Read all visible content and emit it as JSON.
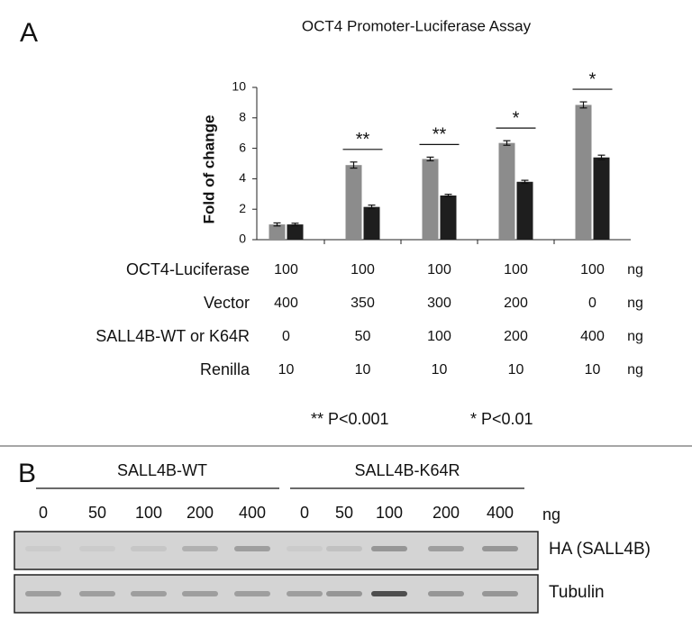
{
  "panels": [
    "A",
    "B"
  ],
  "chart_data": {
    "type": "bar",
    "title": "OCT4 Promoter-Luciferase Assay",
    "y_label": "Fold of change",
    "categories": [
      null,
      null,
      null,
      null,
      null
    ],
    "series": [
      {
        "color": "#8c8c8c",
        "values": [
          1.0,
          4.9,
          5.3,
          6.35,
          8.85
        ],
        "errors": [
          0.1,
          0.2,
          0.12,
          0.15,
          0.2
        ]
      },
      {
        "color": "#1e1e1e",
        "values": [
          1.0,
          2.15,
          2.9,
          3.8,
          5.4
        ],
        "errors": [
          0.08,
          0.12,
          0.08,
          0.1,
          0.15
        ]
      }
    ],
    "annotations": [
      null,
      "**",
      "**",
      "*",
      "*"
    ],
    "ylim": [
      0,
      10
    ],
    "yticks": [
      0,
      2,
      4,
      6,
      8,
      10
    ]
  },
  "table": {
    "rows": [
      {
        "label": "OCT4-Luciferase",
        "values": [
          100,
          100,
          100,
          100,
          100
        ],
        "unit": "ng"
      },
      {
        "label": "Vector",
        "values": [
          400,
          350,
          300,
          200,
          0
        ],
        "unit": "ng"
      },
      {
        "label": "SALL4B-WT or K64R",
        "values": [
          0,
          50,
          100,
          200,
          400
        ],
        "unit": "ng"
      },
      {
        "label": "Renilla",
        "values": [
          10,
          10,
          10,
          10,
          10
        ],
        "unit": "ng"
      }
    ]
  },
  "notes": [
    "** P<0.001",
    "* P<0.01"
  ],
  "blot": {
    "groups": [
      {
        "name": "SALL4B-WT",
        "lanes": [
          0,
          50,
          100,
          200,
          400
        ]
      },
      {
        "name": "SALL4B-K64R",
        "lanes": [
          0,
          50,
          100,
          200,
          400
        ]
      }
    ],
    "unit": "ng",
    "rows": [
      "HA (SALL4B)",
      "Tubulin"
    ]
  }
}
